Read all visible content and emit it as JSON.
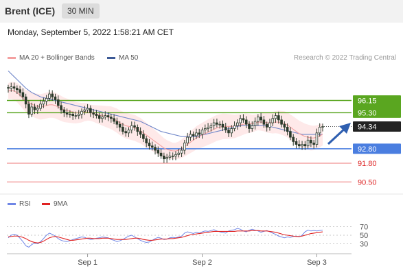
{
  "header": {
    "instrument": "Brent (ICE)",
    "timeframe": "30 MIN"
  },
  "timestamp": "Monday, September 5, 2022 1:58:21 AM CET",
  "legend": {
    "ma20_label": "MA 20 + Bollinger Bands",
    "ma50_label": "MA 50",
    "research": "Research © 2022 Trading Central",
    "rsi_label": "RSI",
    "rsi_ma_label": "9MA"
  },
  "colors": {
    "ma20": "#f4a0a0",
    "ma50": "#6f86c9",
    "bollinger_fill": "#fde1e1",
    "resistance": "#5aa620",
    "support": "#4a7ee0",
    "target_line": "#ee7777",
    "candle": "#2b3a2b",
    "rsi": "#6f86e6",
    "rsi_ma": "#e02222"
  },
  "chart_data": [
    {
      "type": "candlestick",
      "title": "",
      "ylim": [
        89.8,
        98.6
      ],
      "x_ticks": [
        {
          "label": "Sep 1",
          "index": 27
        },
        {
          "label": "Sep 2",
          "index": 66
        },
        {
          "label": "Sep 3",
          "index": 105
        }
      ],
      "close": [
        97.0,
        97.1,
        97.0,
        96.9,
        96.7,
        96.4,
        95.9,
        95.2,
        95.7,
        95.5,
        95.6,
        95.9,
        96.1,
        96.3,
        96.6,
        96.4,
        96.2,
        95.8,
        95.5,
        95.3,
        95.2,
        95.2,
        95.1,
        95.1,
        95.2,
        95.4,
        95.5,
        95.6,
        95.3,
        95.2,
        95.1,
        94.9,
        95.0,
        95.1,
        95.0,
        94.9,
        94.7,
        94.5,
        94.3,
        94.0,
        93.9,
        94.1,
        94.4,
        94.3,
        94.0,
        93.8,
        93.5,
        93.2,
        93.0,
        92.9,
        92.7,
        92.5,
        92.3,
        92.1,
        92.2,
        92.3,
        92.3,
        92.4,
        92.5,
        92.7,
        93.2,
        93.6,
        93.8,
        93.7,
        93.9,
        93.8,
        94.1,
        94.2,
        94.3,
        94.4,
        94.6,
        94.5,
        94.5,
        94.3,
        94.1,
        93.9,
        94.2,
        94.4,
        94.6,
        94.9,
        94.8,
        94.5,
        94.2,
        94.4,
        94.7,
        95.0,
        94.8,
        94.5,
        94.3,
        94.6,
        94.9,
        95.1,
        94.8,
        94.5,
        94.3,
        94.0,
        93.6,
        93.3,
        93.1,
        93.0,
        93.1,
        93.0,
        93.4,
        93.2,
        93.1,
        93.9,
        94.3,
        94.34
      ],
      "ma20": [
        96.8,
        96.85,
        96.8,
        96.7,
        96.5,
        96.3,
        96.1,
        96.0,
        95.9,
        95.8,
        95.75,
        95.7,
        95.75,
        95.8,
        95.85,
        95.85,
        95.8,
        95.7,
        95.6,
        95.5,
        95.45,
        95.4,
        95.35,
        95.3,
        95.3,
        95.3,
        95.35,
        95.35,
        95.3,
        95.25,
        95.2,
        95.15,
        95.1,
        95.05,
        95.0,
        94.95,
        94.85,
        94.75,
        94.6,
        94.5,
        94.4,
        94.35,
        94.3,
        94.25,
        94.15,
        94.05,
        93.9,
        93.75,
        93.6,
        93.45,
        93.3,
        93.15,
        93.0,
        92.85,
        92.75,
        92.7,
        92.65,
        92.65,
        92.7,
        92.8,
        92.95,
        93.1,
        93.25,
        93.4,
        93.55,
        93.65,
        93.75,
        93.85,
        93.95,
        94.05,
        94.15,
        94.25,
        94.3,
        94.35,
        94.35,
        94.35,
        94.35,
        94.35,
        94.4,
        94.45,
        94.5,
        94.55,
        94.55,
        94.55,
        94.6,
        94.65,
        94.65,
        94.65,
        94.6,
        94.6,
        94.6,
        94.65,
        94.65,
        94.6,
        94.55,
        94.45,
        94.3,
        94.15,
        94.0,
        93.85,
        93.75,
        93.65,
        93.6,
        93.55,
        93.55,
        93.6,
        93.7,
        93.8
      ],
      "ma50": [
        98.2,
        98.0,
        97.8,
        97.6,
        97.4,
        97.2,
        97.0,
        96.85,
        96.7,
        96.6,
        96.5,
        96.4,
        96.35,
        96.3,
        96.25,
        96.2,
        96.15,
        96.1,
        96.05,
        96.0,
        95.95,
        95.9,
        95.85,
        95.8,
        95.75,
        95.7,
        95.65,
        95.6,
        95.55,
        95.5,
        95.45,
        95.4,
        95.35,
        95.3,
        95.25,
        95.2,
        95.15,
        95.1,
        95.05,
        95.0,
        94.95,
        94.9,
        94.85,
        94.8,
        94.75,
        94.7,
        94.6,
        94.5,
        94.4,
        94.3,
        94.2,
        94.1,
        94.0,
        93.95,
        93.9,
        93.85,
        93.8,
        93.75,
        93.7,
        93.65,
        93.65,
        93.65,
        93.65,
        93.65,
        93.65,
        93.7,
        93.75,
        93.8,
        93.85,
        93.9,
        93.95,
        94.0,
        94.05,
        94.1,
        94.15,
        94.2,
        94.25,
        94.3,
        94.35,
        94.4,
        94.4,
        94.4,
        94.4,
        94.4,
        94.4,
        94.4,
        94.4,
        94.4,
        94.4,
        94.35,
        94.3,
        94.25,
        94.2,
        94.15,
        94.1,
        94.05,
        94.0,
        93.95,
        93.9,
        93.85,
        93.8,
        93.8,
        93.8,
        93.8,
        93.8,
        93.8,
        93.8,
        93.8
      ],
      "levels": [
        {
          "value": 96.15,
          "label": "96.15",
          "kind": "resistance"
        },
        {
          "value": 95.3,
          "label": "95.30",
          "kind": "resistance"
        },
        {
          "value": 92.8,
          "label": "92.80",
          "kind": "support"
        },
        {
          "value": 91.8,
          "label": "91.80",
          "kind": "target"
        },
        {
          "value": 90.5,
          "label": "90.50",
          "kind": "target"
        }
      ],
      "last_price": {
        "value": 94.34,
        "label": "94.34"
      }
    },
    {
      "type": "line",
      "title": "",
      "ylim": [
        0,
        100
      ],
      "y_ticks": [
        "70",
        "50",
        "30"
      ],
      "series": [
        {
          "name": "RSI",
          "values": [
            44,
            50,
            52,
            50,
            43,
            35,
            25,
            22,
            28,
            32,
            30,
            35,
            42,
            50,
            55,
            52,
            48,
            42,
            38,
            36,
            35,
            37,
            40,
            42,
            44,
            46,
            45,
            42,
            40,
            41,
            43,
            44,
            46,
            45,
            44,
            40,
            38,
            35,
            37,
            40,
            44,
            48,
            50,
            46,
            42,
            38,
            35,
            33,
            34,
            38,
            42,
            45,
            43,
            40,
            41,
            44,
            45,
            44,
            46,
            48,
            55,
            58,
            56,
            54,
            57,
            55,
            58,
            60,
            59,
            61,
            63,
            60,
            58,
            56,
            55,
            60,
            62,
            63,
            66,
            64,
            60,
            58,
            62,
            64,
            62,
            60,
            57,
            59,
            61,
            58,
            55,
            52,
            48,
            46,
            44,
            46,
            45,
            47,
            48,
            46,
            50,
            58,
            62,
            60,
            61,
            60,
            61,
            62
          ]
        },
        {
          "name": "9MA",
          "values": [
            46,
            47,
            48,
            48,
            47,
            45,
            42,
            38,
            35,
            33,
            32,
            33,
            36,
            40,
            44,
            46,
            47,
            46,
            44,
            42,
            40,
            38,
            38,
            39,
            40,
            41,
            42,
            43,
            43,
            42,
            42,
            42,
            43,
            43,
            43,
            42,
            41,
            40,
            40,
            40,
            40,
            41,
            42,
            43,
            43,
            42,
            40,
            39,
            38,
            38,
            39,
            40,
            41,
            41,
            41,
            42,
            42,
            43,
            44,
            45,
            47,
            49,
            51,
            52,
            53,
            54,
            55,
            56,
            57,
            58,
            59,
            59,
            59,
            59,
            59,
            59,
            59,
            59,
            60,
            60,
            60,
            60,
            60,
            61,
            61,
            61,
            60,
            60,
            60,
            59,
            58,
            57,
            55,
            53,
            51,
            50,
            49,
            48,
            47,
            47,
            48,
            50,
            52,
            54,
            55,
            56,
            57,
            58
          ]
        }
      ]
    }
  ]
}
